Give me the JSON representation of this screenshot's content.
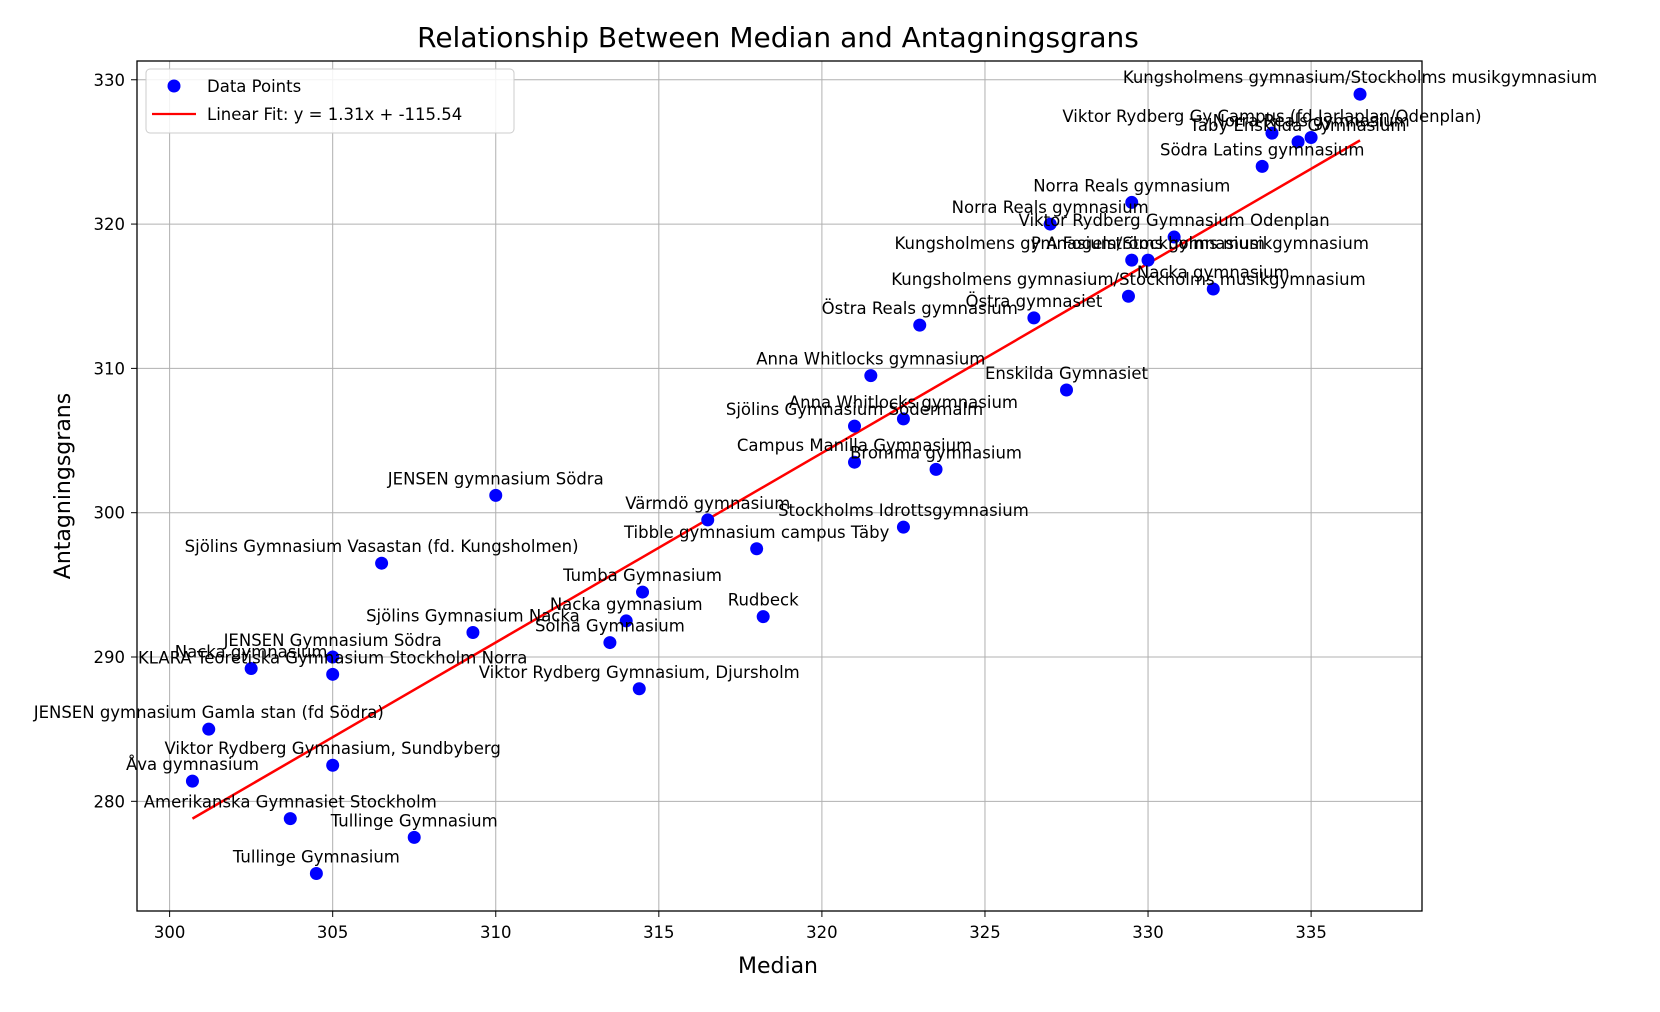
{
  "chart_data": {
    "type": "scatter",
    "title": "Relationship Between Median and Antagningsgrans",
    "xlabel": "Median",
    "ylabel": "Antagningsgrans",
    "xlim": [
      299,
      338.4
    ],
    "ylim": [
      272.4,
      331.3
    ],
    "xticks": [
      300,
      305,
      310,
      315,
      320,
      325,
      330,
      335
    ],
    "yticks": [
      280,
      290,
      300,
      310,
      320,
      330
    ],
    "grid": true,
    "legend_position": "top-left",
    "colors": {
      "points": "#0000ff",
      "fit_line": "#ff0000"
    },
    "series": [
      {
        "name": "Data Points",
        "points": [
          {
            "x": 336.5,
            "y": 329.0,
            "label": "Kungsholmens gymnasium/Stockholms musikgymnasium"
          },
          {
            "x": 333.8,
            "y": 326.3,
            "label": "Viktor Rydberg Gy Campus (fd Jarlaplan/Odenplan)"
          },
          {
            "x": 334.6,
            "y": 325.7,
            "label": "Täby Enskilda Gymnasium"
          },
          {
            "x": 335.0,
            "y": 326.0,
            "label": "Norra Reals gymnasium"
          },
          {
            "x": 333.5,
            "y": 324.0,
            "label": "Södra Latins gymnasium"
          },
          {
            "x": 329.5,
            "y": 321.5,
            "label": "Norra Reals gymnasium"
          },
          {
            "x": 327.0,
            "y": 320.0,
            "label": "Norra Reals gymnasium"
          },
          {
            "x": 330.8,
            "y": 319.1,
            "label": "Viktor Rydberg Gymnasium Odenplan"
          },
          {
            "x": 329.5,
            "y": 317.5,
            "label": "Kungsholmens gymnasium/Stockholms musikgymnasium"
          },
          {
            "x": 330.0,
            "y": 317.5,
            "label": "P A Fogelströms gymnasium"
          },
          {
            "x": 332.0,
            "y": 315.5,
            "label": "Nacka gymnasium"
          },
          {
            "x": 329.4,
            "y": 315.0,
            "label": "Kungsholmens gymnasium/Stockholms musikgymnasium"
          },
          {
            "x": 326.5,
            "y": 313.5,
            "label": "Östra gymnasiet"
          },
          {
            "x": 323.0,
            "y": 313.0,
            "label": "Östra Reals gymnasium"
          },
          {
            "x": 321.5,
            "y": 309.5,
            "label": "Anna Whitlocks gymnasium"
          },
          {
            "x": 327.5,
            "y": 308.5,
            "label": "Enskilda Gymnasiet"
          },
          {
            "x": 322.5,
            "y": 306.5,
            "label": "Anna Whitlocks gymnasium"
          },
          {
            "x": 321.0,
            "y": 306.0,
            "label": "Sjölins Gymnasium Södermalm"
          },
          {
            "x": 321.0,
            "y": 303.5,
            "label": "Campus Manilla Gymnasium"
          },
          {
            "x": 323.5,
            "y": 303.0,
            "label": "Bromma gymnasium"
          },
          {
            "x": 310.0,
            "y": 301.2,
            "label": "JENSEN gymnasium Södra"
          },
          {
            "x": 316.5,
            "y": 299.5,
            "label": "Värmdö gymnasium"
          },
          {
            "x": 322.5,
            "y": 299.0,
            "label": "Stockholms Idrottsgymnasium"
          },
          {
            "x": 318.0,
            "y": 297.5,
            "label": "Tibble gymnasium campus Täby"
          },
          {
            "x": 306.5,
            "y": 296.5,
            "label": "Sjölins Gymnasium Vasastan (fd. Kungsholmen)"
          },
          {
            "x": 314.5,
            "y": 294.5,
            "label": "Tumba Gymnasium"
          },
          {
            "x": 314.0,
            "y": 292.5,
            "label": "Nacka gymnasium"
          },
          {
            "x": 318.2,
            "y": 292.8,
            "label": "Rudbeck"
          },
          {
            "x": 309.3,
            "y": 291.7,
            "label": "Sjölins Gymnasium Nacka"
          },
          {
            "x": 313.5,
            "y": 291.0,
            "label": "Solna Gymnasium"
          },
          {
            "x": 305.0,
            "y": 290.0,
            "label": "JENSEN Gymnasium Södra"
          },
          {
            "x": 302.5,
            "y": 289.2,
            "label": "Nacka gymnasium"
          },
          {
            "x": 305.0,
            "y": 288.8,
            "label": "KLARA Teoretiska Gymnasium Stockholm Norra"
          },
          {
            "x": 314.4,
            "y": 287.8,
            "label": "Viktor Rydberg Gymnasium, Djursholm"
          },
          {
            "x": 301.2,
            "y": 285.0,
            "label": "JENSEN gymnasium Gamla stan (fd Södra)"
          },
          {
            "x": 305.0,
            "y": 282.5,
            "label": "Viktor Rydberg Gymnasium, Sundbyberg"
          },
          {
            "x": 300.7,
            "y": 281.4,
            "label": "Åva gymnasium"
          },
          {
            "x": 303.7,
            "y": 278.8,
            "label": "Amerikanska Gymnasiet Stockholm"
          },
          {
            "x": 307.5,
            "y": 277.5,
            "label": "Tullinge Gymnasium"
          },
          {
            "x": 304.5,
            "y": 275.0,
            "label": "Tullinge Gymnasium"
          }
        ]
      },
      {
        "name": "Linear Fit: y = 1.31x + -115.54",
        "type": "line",
        "x": [
          300.7,
          336.5
        ],
        "y": [
          278.8,
          325.8
        ]
      }
    ]
  }
}
